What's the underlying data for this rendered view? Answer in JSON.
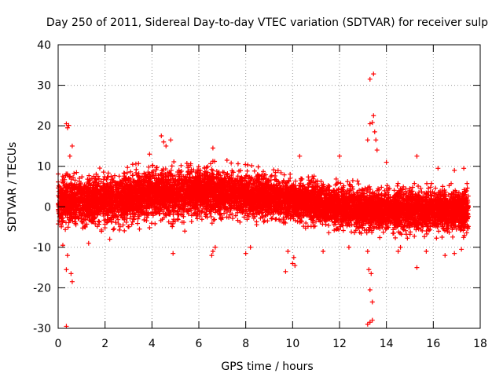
{
  "chart_data": {
    "type": "scatter",
    "title": "Day 250 of 2011, Sidereal Day-to-day VTEC variation (SDTVAR) for receiver sulp",
    "xlabel": "GPS time / hours",
    "ylabel": "SDTVAR / TECUs",
    "xlim": [
      0,
      18
    ],
    "ylim": [
      -30,
      40
    ],
    "x_ticks": [
      0,
      2,
      4,
      6,
      8,
      10,
      12,
      14,
      16,
      18
    ],
    "y_ticks": [
      -30,
      -20,
      -10,
      0,
      10,
      20,
      30,
      40
    ],
    "x_tick_labels": [
      "0",
      "2",
      "4",
      "6",
      "8",
      "10",
      "12",
      "14",
      "16",
      "18"
    ],
    "y_tick_labels": [
      "-30",
      "-20",
      "-10",
      "0",
      "10",
      "20",
      "30",
      "40"
    ],
    "grid": true,
    "marker": "+",
    "series": [
      {
        "name": "SDTVAR",
        "color": "#ff0000",
        "band": {
          "x_range": [
            0.0,
            17.5
          ],
          "center": [
            [
              0,
              1
            ],
            [
              2,
              1.5
            ],
            [
              4,
              3
            ],
            [
              6,
              3.5
            ],
            [
              8,
              3
            ],
            [
              10,
              1.5
            ],
            [
              12,
              0
            ],
            [
              14,
              -1
            ],
            [
              16,
              -1
            ],
            [
              17.5,
              -1
            ]
          ],
          "spread": [
            [
              0,
              6
            ],
            [
              2,
              6
            ],
            [
              4,
              6
            ],
            [
              6,
              6
            ],
            [
              8,
              5.5
            ],
            [
              10,
              5
            ],
            [
              12,
              5
            ],
            [
              14,
              5
            ],
            [
              16,
              5
            ],
            [
              17.5,
              5
            ]
          ],
          "density": 9000
        },
        "outliers": [
          {
            "x": 0.35,
            "y": 20.5
          },
          {
            "x": 0.4,
            "y": 19.5
          },
          {
            "x": 0.45,
            "y": 20.1
          },
          {
            "x": 0.6,
            "y": 15.0
          },
          {
            "x": 0.5,
            "y": 12.5
          },
          {
            "x": 0.4,
            "y": -12.0
          },
          {
            "x": 0.35,
            "y": -15.5
          },
          {
            "x": 0.55,
            "y": -16.5
          },
          {
            "x": 0.6,
            "y": -18.5
          },
          {
            "x": 0.35,
            "y": -29.5
          },
          {
            "x": 0.2,
            "y": -9.5
          },
          {
            "x": 1.3,
            "y": -9.0
          },
          {
            "x": 2.2,
            "y": -8.0
          },
          {
            "x": 4.4,
            "y": 17.5
          },
          {
            "x": 4.5,
            "y": 16.0
          },
          {
            "x": 4.8,
            "y": 16.5
          },
          {
            "x": 4.6,
            "y": 15.0
          },
          {
            "x": 3.9,
            "y": 13.0
          },
          {
            "x": 4.9,
            "y": -11.5
          },
          {
            "x": 5.4,
            "y": -6.0
          },
          {
            "x": 6.6,
            "y": 14.5
          },
          {
            "x": 6.6,
            "y": -11.0
          },
          {
            "x": 6.55,
            "y": -12.0
          },
          {
            "x": 6.7,
            "y": -10.0
          },
          {
            "x": 7.2,
            "y": 11.5
          },
          {
            "x": 8.0,
            "y": -11.5
          },
          {
            "x": 8.2,
            "y": -10.0
          },
          {
            "x": 9.7,
            "y": -16.0
          },
          {
            "x": 10.0,
            "y": -14.0
          },
          {
            "x": 10.05,
            "y": -12.5
          },
          {
            "x": 10.1,
            "y": -14.5
          },
          {
            "x": 9.8,
            "y": -11.0
          },
          {
            "x": 10.3,
            "y": 12.5
          },
          {
            "x": 11.3,
            "y": -11.0
          },
          {
            "x": 12.0,
            "y": 12.5
          },
          {
            "x": 12.4,
            "y": -10.0
          },
          {
            "x": 13.3,
            "y": 31.5
          },
          {
            "x": 13.45,
            "y": 32.8
          },
          {
            "x": 13.4,
            "y": 20.8
          },
          {
            "x": 13.45,
            "y": 22.5
          },
          {
            "x": 13.3,
            "y": 20.5
          },
          {
            "x": 13.5,
            "y": 18.5
          },
          {
            "x": 13.55,
            "y": 16.5
          },
          {
            "x": 13.2,
            "y": 16.5
          },
          {
            "x": 13.6,
            "y": 14.0
          },
          {
            "x": 13.25,
            "y": -15.5
          },
          {
            "x": 13.35,
            "y": -16.5
          },
          {
            "x": 13.3,
            "y": -20.5
          },
          {
            "x": 13.4,
            "y": -23.5
          },
          {
            "x": 13.3,
            "y": -28.5
          },
          {
            "x": 13.4,
            "y": -28.0
          },
          {
            "x": 13.2,
            "y": -29.0
          },
          {
            "x": 13.2,
            "y": -11.0
          },
          {
            "x": 14.0,
            "y": 11.0
          },
          {
            "x": 14.5,
            "y": -11.0
          },
          {
            "x": 14.6,
            "y": -10.0
          },
          {
            "x": 15.3,
            "y": 12.5
          },
          {
            "x": 15.3,
            "y": -15.0
          },
          {
            "x": 15.7,
            "y": -11.0
          },
          {
            "x": 16.2,
            "y": 9.5
          },
          {
            "x": 16.9,
            "y": 9.0
          },
          {
            "x": 16.5,
            "y": -12.0
          },
          {
            "x": 16.9,
            "y": -11.5
          },
          {
            "x": 17.2,
            "y": -10.5
          },
          {
            "x": 17.3,
            "y": 9.5
          }
        ]
      }
    ]
  }
}
